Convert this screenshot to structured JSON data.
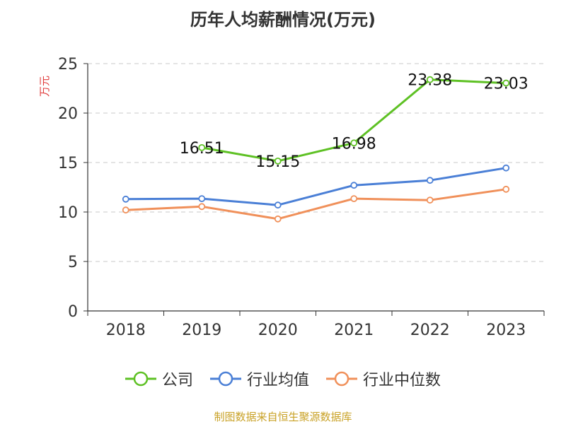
{
  "chart_data": {
    "type": "line",
    "title": "历年人均薪酬情况(万元)",
    "ylabel": "万元",
    "categories": [
      "2018",
      "2019",
      "2020",
      "2021",
      "2022",
      "2023"
    ],
    "ylim": [
      0,
      25
    ],
    "yticks": [
      0,
      5,
      10,
      15,
      20,
      25
    ],
    "grid": true,
    "legend_position": "bottom",
    "series": [
      {
        "name": "公司",
        "color": "#5ec124",
        "values": [
          null,
          16.51,
          15.15,
          16.98,
          23.38,
          23.03
        ],
        "labels": [
          "",
          "16.51",
          "15.15",
          "16.98",
          "23.38",
          "23.03"
        ]
      },
      {
        "name": "行业均值",
        "color": "#4a7fd6",
        "values": [
          11.3,
          11.35,
          10.7,
          12.7,
          13.2,
          14.45
        ]
      },
      {
        "name": "行业中位数",
        "color": "#f0905a",
        "values": [
          10.2,
          10.55,
          9.3,
          11.35,
          11.2,
          12.3
        ]
      }
    ]
  },
  "footer": {
    "source": "制图数据来自恒生聚源数据库"
  }
}
